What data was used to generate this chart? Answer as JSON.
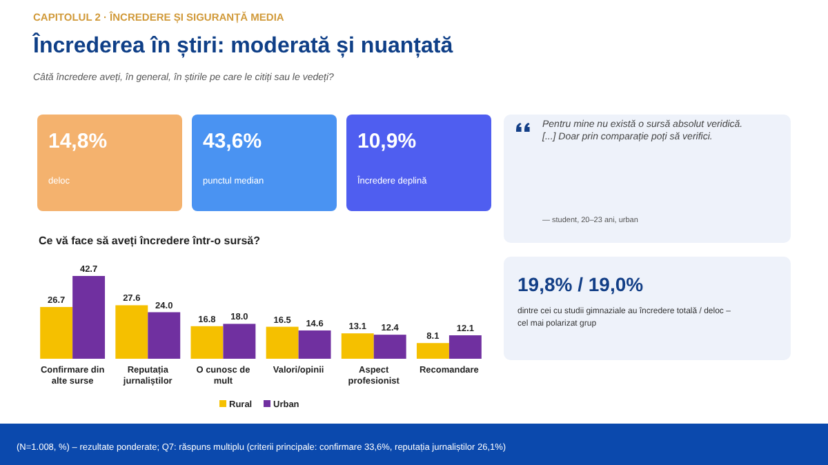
{
  "chart_data": [
    {
      "type": "other",
      "title": "Încrederea în știri: moderată și nuanțată",
      "subtitle": "Câtă încredere aveți, în general, în știrile pe care le citiți sau le vedeți?",
      "annotations": [
        "CAPITOLUL 2 · ÎNCREDERE ȘI SIGURANȚĂ MEDIA",
        "14,8%",
        "deloc",
        "43,6%",
        "punctul median",
        "10,9%",
        "Încredere deplină",
        "Pentru mine nu există o sursă absolut veridică. [...] Doar prin comparație poți să verifici.",
        "— student, 20–23 ani, urban",
        "19,8% / 19,0%",
        "dintre cei cu studii gimnaziale au încredere totală / deloc – cel mai polarizat grup",
        "(N=1.008, %) – rezultate ponderate; Q7: răspuns multiplu (criterii principale: confirmare 33,6%, reputația jurnaliștilor 26,1%)"
      ]
    },
    {
      "type": "bar",
      "title": "Ce vă face să aveți încredere într-o sursă?",
      "categories": [
        "Confirmare din alte surse",
        "Reputația jurnaliștilor",
        "O cunosc de mult",
        "Valori/opinii",
        "Aspect profesionist",
        "Recomandare"
      ],
      "series": [
        {
          "name": "Rural",
          "color": "#f5c000",
          "values": [
            26.7,
            27.6,
            16.8,
            16.5,
            13.1,
            8.1
          ],
          "value_labels": [
            "26.7",
            "27.6",
            "16.8",
            "16.5",
            "13.1",
            "8.1"
          ]
        },
        {
          "name": "Urban",
          "color": "#7030a0",
          "values": [
            42.7,
            24.0,
            18.0,
            14.6,
            12.4,
            12.1
          ],
          "value_labels": [
            "42.7",
            "24.0",
            "18.0",
            "14.6",
            "12.4",
            "12.1"
          ]
        }
      ],
      "legend": "bottom"
    }
  ]
}
